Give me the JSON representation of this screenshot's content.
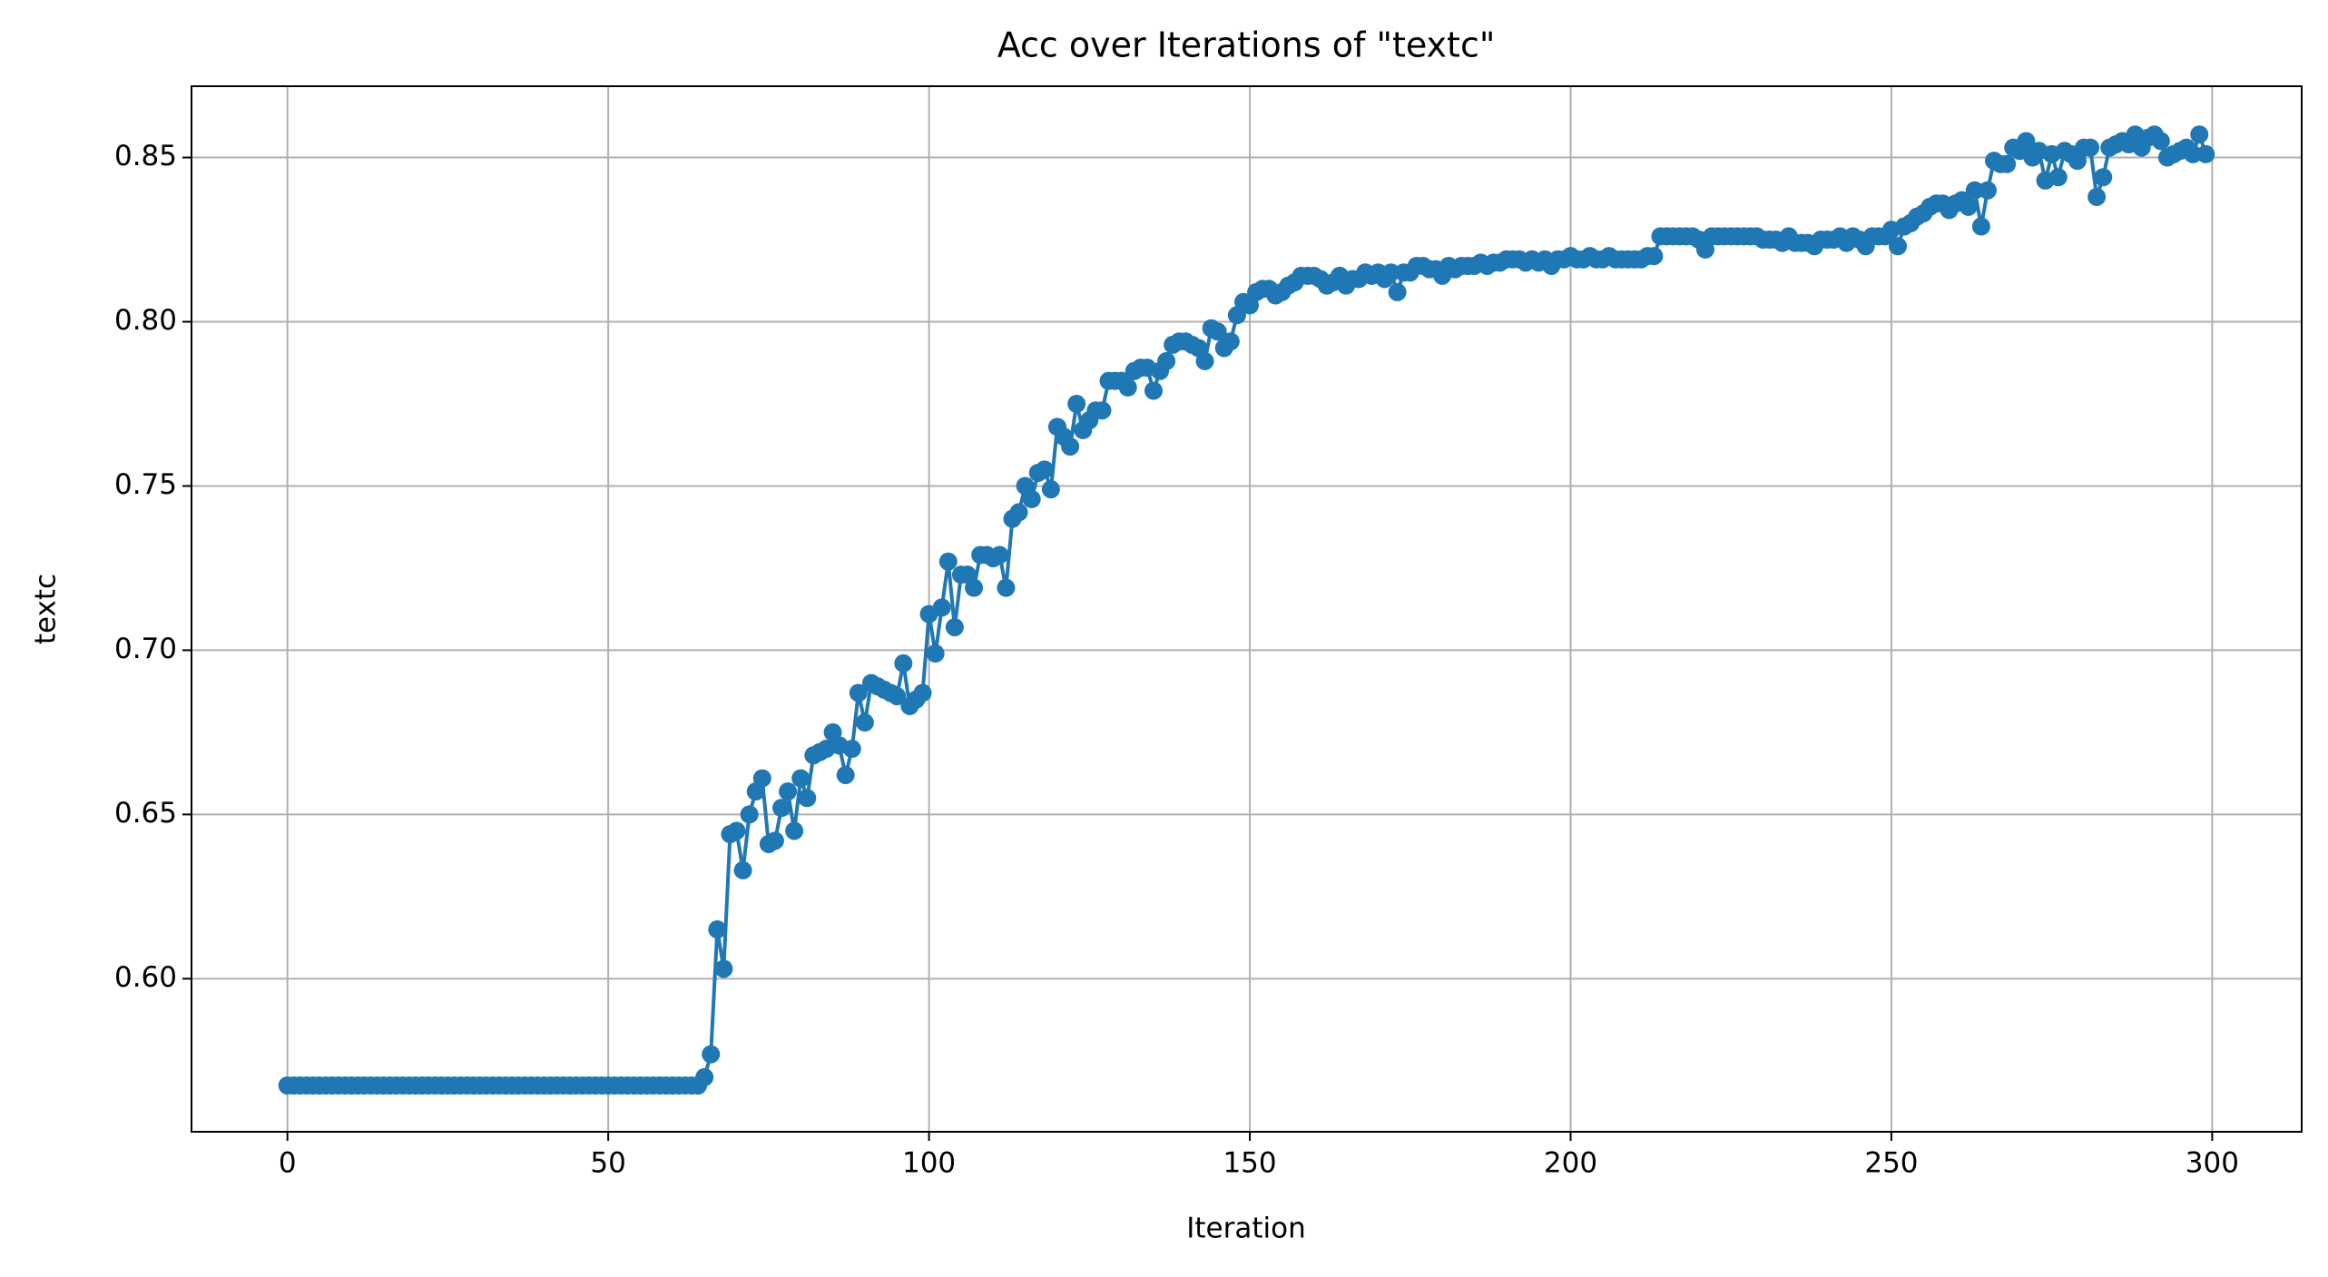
{
  "chart_data": {
    "type": "line",
    "title": "Acc over Iterations of \"textc\"",
    "x_label": "Iteration",
    "y_label": "textc",
    "color": "#1f77b4",
    "grid": true,
    "markers": true,
    "xlim": [
      -14.95,
      313.95
    ],
    "xticks": [
      0,
      50,
      100,
      150,
      200,
      250,
      300
    ],
    "ylim": [
      0.5534,
      0.8717
    ],
    "yticks": [
      {
        "value": 0.6,
        "label": "0.60"
      },
      0.65,
      {
        "value": 0.7,
        "label": "0.70"
      },
      0.75,
      {
        "value": 0.8,
        "label": "0.80"
      },
      0.85
    ],
    "x": [
      0,
      1,
      2,
      3,
      4,
      5,
      6,
      7,
      8,
      9,
      10,
      11,
      12,
      13,
      14,
      15,
      16,
      17,
      18,
      19,
      20,
      21,
      22,
      23,
      24,
      25,
      26,
      27,
      28,
      29,
      30,
      31,
      32,
      33,
      34,
      35,
      36,
      37,
      38,
      39,
      40,
      41,
      42,
      43,
      44,
      45,
      46,
      47,
      48,
      49,
      50,
      51,
      52,
      53,
      54,
      55,
      56,
      57,
      58,
      59,
      60,
      61,
      62,
      63,
      64,
      65,
      66,
      67,
      68,
      69,
      70,
      71,
      72,
      73,
      74,
      75,
      76,
      77,
      78,
      79,
      80,
      81,
      82,
      83,
      84,
      85,
      86,
      87,
      88,
      89,
      90,
      91,
      92,
      93,
      94,
      95,
      96,
      97,
      98,
      99,
      100,
      101,
      102,
      103,
      104,
      105,
      106,
      107,
      108,
      109,
      110,
      111,
      112,
      113,
      114,
      115,
      116,
      117,
      118,
      119,
      120,
      121,
      122,
      123,
      124,
      125,
      126,
      127,
      128,
      129,
      130,
      131,
      132,
      133,
      134,
      135,
      136,
      137,
      138,
      139,
      140,
      141,
      142,
      143,
      144,
      145,
      146,
      147,
      148,
      149,
      150,
      151,
      152,
      153,
      154,
      155,
      156,
      157,
      158,
      159,
      160,
      161,
      162,
      163,
      164,
      165,
      166,
      167,
      168,
      169,
      170,
      171,
      172,
      173,
      174,
      175,
      176,
      177,
      178,
      179,
      180,
      181,
      182,
      183,
      184,
      185,
      186,
      187,
      188,
      189,
      190,
      191,
      192,
      193,
      194,
      195,
      196,
      197,
      198,
      199,
      200,
      201,
      202,
      203,
      204,
      205,
      206,
      207,
      208,
      209,
      210,
      211,
      212,
      213,
      214,
      215,
      216,
      217,
      218,
      219,
      220,
      221,
      222,
      223,
      224,
      225,
      226,
      227,
      228,
      229,
      230,
      231,
      232,
      233,
      234,
      235,
      236,
      237,
      238,
      239,
      240,
      241,
      242,
      243,
      244,
      245,
      246,
      247,
      248,
      249,
      250,
      251,
      252,
      253,
      254,
      255,
      256,
      257,
      258,
      259,
      260,
      261,
      262,
      263,
      264,
      265,
      266,
      267,
      268,
      269,
      270,
      271,
      272,
      273,
      274,
      275,
      276,
      277,
      278,
      279,
      280,
      281,
      282,
      283,
      284,
      285,
      286,
      287,
      288,
      289,
      290,
      291,
      292,
      293,
      294,
      295,
      296,
      297,
      298,
      299
    ],
    "values": [
      0.5675,
      0.5675,
      0.5675,
      0.5675,
      0.5675,
      0.5675,
      0.5675,
      0.5675,
      0.5675,
      0.5675,
      0.5675,
      0.5675,
      0.5675,
      0.5675,
      0.5675,
      0.5675,
      0.5675,
      0.5675,
      0.5675,
      0.5675,
      0.5675,
      0.5675,
      0.5675,
      0.5675,
      0.5675,
      0.5675,
      0.5675,
      0.5675,
      0.5675,
      0.5675,
      0.5675,
      0.5675,
      0.5675,
      0.5675,
      0.5675,
      0.5675,
      0.5675,
      0.5675,
      0.5675,
      0.5675,
      0.5675,
      0.5675,
      0.5675,
      0.5675,
      0.5675,
      0.5675,
      0.5675,
      0.5675,
      0.5675,
      0.5675,
      0.5675,
      0.5675,
      0.5675,
      0.5675,
      0.5675,
      0.5675,
      0.5675,
      0.5675,
      0.5675,
      0.5675,
      0.5675,
      0.5675,
      0.5675,
      0.5675,
      0.5675,
      0.57,
      0.577,
      0.615,
      0.603,
      0.644,
      0.645,
      0.633,
      0.65,
      0.657,
      0.661,
      0.641,
      0.642,
      0.652,
      0.657,
      0.645,
      0.661,
      0.655,
      0.668,
      0.669,
      0.67,
      0.675,
      0.671,
      0.662,
      0.67,
      0.687,
      0.678,
      0.69,
      0.689,
      0.688,
      0.687,
      0.686,
      0.696,
      0.683,
      0.685,
      0.687,
      0.711,
      0.699,
      0.713,
      0.727,
      0.707,
      0.723,
      0.723,
      0.719,
      0.729,
      0.729,
      0.728,
      0.729,
      0.719,
      0.74,
      0.742,
      0.75,
      0.746,
      0.754,
      0.755,
      0.749,
      0.768,
      0.765,
      0.762,
      0.775,
      0.767,
      0.77,
      0.773,
      0.773,
      0.782,
      0.782,
      0.782,
      0.78,
      0.785,
      0.786,
      0.786,
      0.779,
      0.785,
      0.788,
      0.793,
      0.794,
      0.794,
      0.793,
      0.792,
      0.788,
      0.798,
      0.797,
      0.792,
      0.794,
      0.802,
      0.806,
      0.805,
      0.809,
      0.81,
      0.81,
      0.808,
      0.809,
      0.811,
      0.812,
      0.814,
      0.814,
      0.814,
      0.813,
      0.811,
      0.812,
      0.814,
      0.811,
      0.813,
      0.813,
      0.815,
      0.814,
      0.815,
      0.813,
      0.815,
      0.809,
      0.815,
      0.815,
      0.817,
      0.817,
      0.816,
      0.816,
      0.814,
      0.817,
      0.816,
      0.817,
      0.817,
      0.817,
      0.818,
      0.817,
      0.818,
      0.818,
      0.819,
      0.819,
      0.819,
      0.818,
      0.819,
      0.818,
      0.819,
      0.817,
      0.819,
      0.819,
      0.82,
      0.819,
      0.819,
      0.82,
      0.819,
      0.819,
      0.82,
      0.819,
      0.819,
      0.819,
      0.819,
      0.819,
      0.82,
      0.82,
      0.826,
      0.826,
      0.826,
      0.826,
      0.826,
      0.826,
      0.825,
      0.822,
      0.826,
      0.826,
      0.826,
      0.826,
      0.826,
      0.826,
      0.826,
      0.826,
      0.825,
      0.825,
      0.825,
      0.824,
      0.826,
      0.824,
      0.824,
      0.824,
      0.823,
      0.825,
      0.825,
      0.825,
      0.826,
      0.824,
      0.826,
      0.825,
      0.823,
      0.826,
      0.826,
      0.826,
      0.828,
      0.823,
      0.829,
      0.83,
      0.832,
      0.833,
      0.835,
      0.836,
      0.836,
      0.834,
      0.836,
      0.837,
      0.835,
      0.84,
      0.829,
      0.84,
      0.849,
      0.848,
      0.848,
      0.853,
      0.852,
      0.855,
      0.85,
      0.852,
      0.843,
      0.851,
      0.844,
      0.852,
      0.851,
      0.849,
      0.853,
      0.853,
      0.838,
      0.844,
      0.853,
      0.854,
      0.855,
      0.854,
      0.857,
      0.853,
      0.856,
      0.857,
      0.855,
      0.85,
      0.851,
      0.852,
      0.853,
      0.851,
      0.857,
      0.851
    ]
  }
}
